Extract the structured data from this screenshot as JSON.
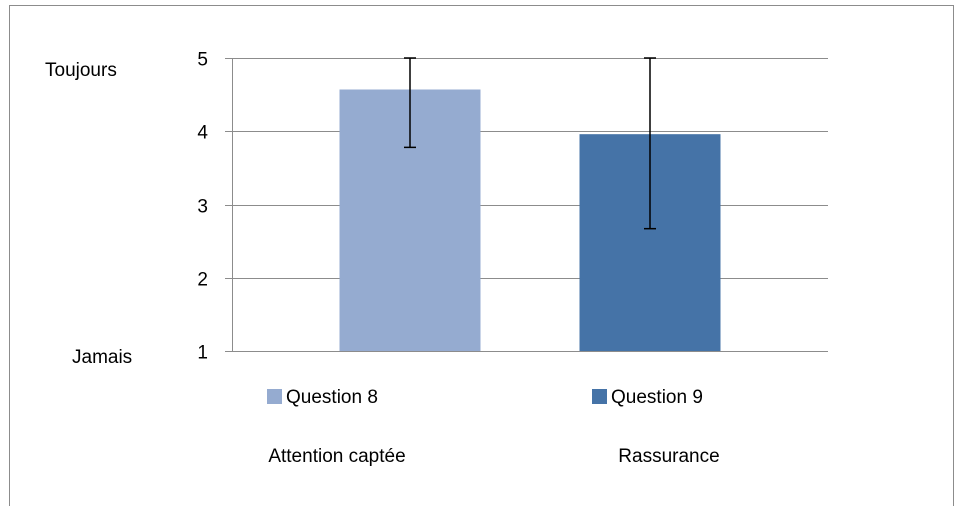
{
  "chart_data": {
    "type": "bar",
    "categories": [
      "Attention captée",
      "Rassurance"
    ],
    "series": [
      {
        "name": "Question 8",
        "color": "#95abd0",
        "value": 4.57,
        "error_low": 3.78,
        "error_high": 5.0
      },
      {
        "name": "Question 9",
        "color": "#4573a7",
        "value": 3.96,
        "error_low": 2.67,
        "error_high": 5.0
      }
    ],
    "ylim": [
      1,
      5
    ],
    "yticks": [
      "1",
      "2",
      "3",
      "4",
      "5"
    ],
    "y_anchor_labels": {
      "top": "Toujours",
      "bottom": "Jamais"
    },
    "grid": true,
    "legend": "bottom",
    "title": "",
    "xlabel": "",
    "ylabel": ""
  }
}
